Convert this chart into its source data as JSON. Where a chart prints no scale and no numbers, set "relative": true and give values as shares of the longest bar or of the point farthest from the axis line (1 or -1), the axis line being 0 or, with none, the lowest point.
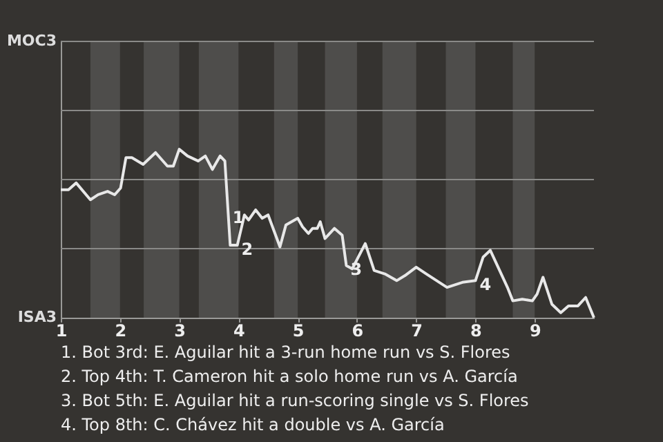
{
  "chart_data": {
    "type": "line",
    "relative": true,
    "x": [
      1,
      1.13,
      1.26,
      1.5,
      1.63,
      1.79,
      1.91,
      2.01,
      2.1,
      2.2,
      2.39,
      2.6,
      2.8,
      2.9,
      3,
      3.14,
      3.32,
      3.44,
      3.56,
      3.69,
      3.77,
      3.86,
      3.98,
      4.1,
      4.17,
      4.29,
      4.4,
      4.5,
      4.7,
      4.8,
      5,
      5.08,
      5.18,
      5.25,
      5.33,
      5.38,
      5.46,
      5.62,
      5.75,
      5.82,
      5.92,
      6.14,
      6.29,
      6.47,
      6.67,
      6.81,
      7,
      7.17,
      7.52,
      7.78,
      8,
      8.13,
      8.25,
      8.54,
      8.63,
      8.79,
      8.96,
      9.04,
      9.14,
      9.29,
      9.44,
      9.57,
      9.73,
      9.86,
      10
    ],
    "series": [
      {
        "color": "#e8e8e8",
        "values": [
          0.76,
          0.76,
          0.8,
          0.7,
          0.73,
          0.75,
          0.73,
          0.77,
          0.95,
          0.95,
          0.91,
          0.98,
          0.9,
          0.9,
          1,
          0.96,
          0.93,
          0.96,
          0.88,
          0.96,
          0.93,
          0.43,
          0.43,
          0.61,
          0.58,
          0.64,
          0.59,
          0.61,
          0.42,
          0.55,
          0.59,
          0.54,
          0.5,
          0.53,
          0.53,
          0.57,
          0.47,
          0.53,
          0.49,
          0.31,
          0.29,
          0.44,
          0.28,
          0.26,
          0.22,
          0.25,
          0.3,
          0.26,
          0.18,
          0.21,
          0.22,
          0.36,
          0.4,
          0.18,
          0.1,
          0.11,
          0.1,
          0.14,
          0.24,
          0.08,
          0.03,
          0.07,
          0.07,
          0.12,
          0
        ]
      }
    ],
    "xlim": [
      1,
      10
    ],
    "xticks": [
      1,
      2,
      3,
      4,
      5,
      6,
      7,
      8,
      9
    ],
    "ref_lines": [
      {
        "axis": "y",
        "value": 0.41,
        "color": "#8a8a88"
      },
      {
        "axis": "y",
        "value": 0.82,
        "color": "#8a8a88"
      },
      {
        "axis": "y",
        "value": 1.23,
        "color": "#8a8a88"
      },
      {
        "axis": "y",
        "value": 1.64,
        "color": "#8a8a88"
      }
    ],
    "bands": [
      {
        "axis": "x",
        "from": 1.5,
        "to": 2,
        "color": "#4e4d4b"
      },
      {
        "axis": "x",
        "from": 2.4,
        "to": 3,
        "color": "#4e4d4b"
      },
      {
        "axis": "x",
        "from": 3.33,
        "to": 4,
        "color": "#4e4d4b"
      },
      {
        "axis": "x",
        "from": 4.6,
        "to": 5,
        "color": "#4e4d4b"
      },
      {
        "axis": "x",
        "from": 5.46,
        "to": 6,
        "color": "#4e4d4b"
      },
      {
        "axis": "x",
        "from": 6.43,
        "to": 7,
        "color": "#4e4d4b"
      },
      {
        "axis": "x",
        "from": 7.5,
        "to": 8,
        "color": "#4e4d4b"
      },
      {
        "axis": "x",
        "from": 8.63,
        "to": 9,
        "color": "#4e4d4b"
      }
    ],
    "annotations": [
      "MOC3",
      "ISA3",
      {
        "text": "1",
        "x": 3.83,
        "y": 0.62
      },
      {
        "text": "2",
        "x": 3.98,
        "y": 0.43
      },
      {
        "text": "3",
        "x": 5.82,
        "y": 0.31
      },
      {
        "text": "4",
        "x": 8,
        "y": 0.22
      },
      "1. Bot 3rd: E. Aguilar hit a 3-run home run vs S. Flores",
      "2. Top 4th: T. Cameron hit a solo home run vs A. García",
      "3. Bot 5th: E. Aguilar hit a run-scoring single vs S. Flores",
      "4. Top 8th: C. Chávez hit a double vs A. García"
    ]
  }
}
